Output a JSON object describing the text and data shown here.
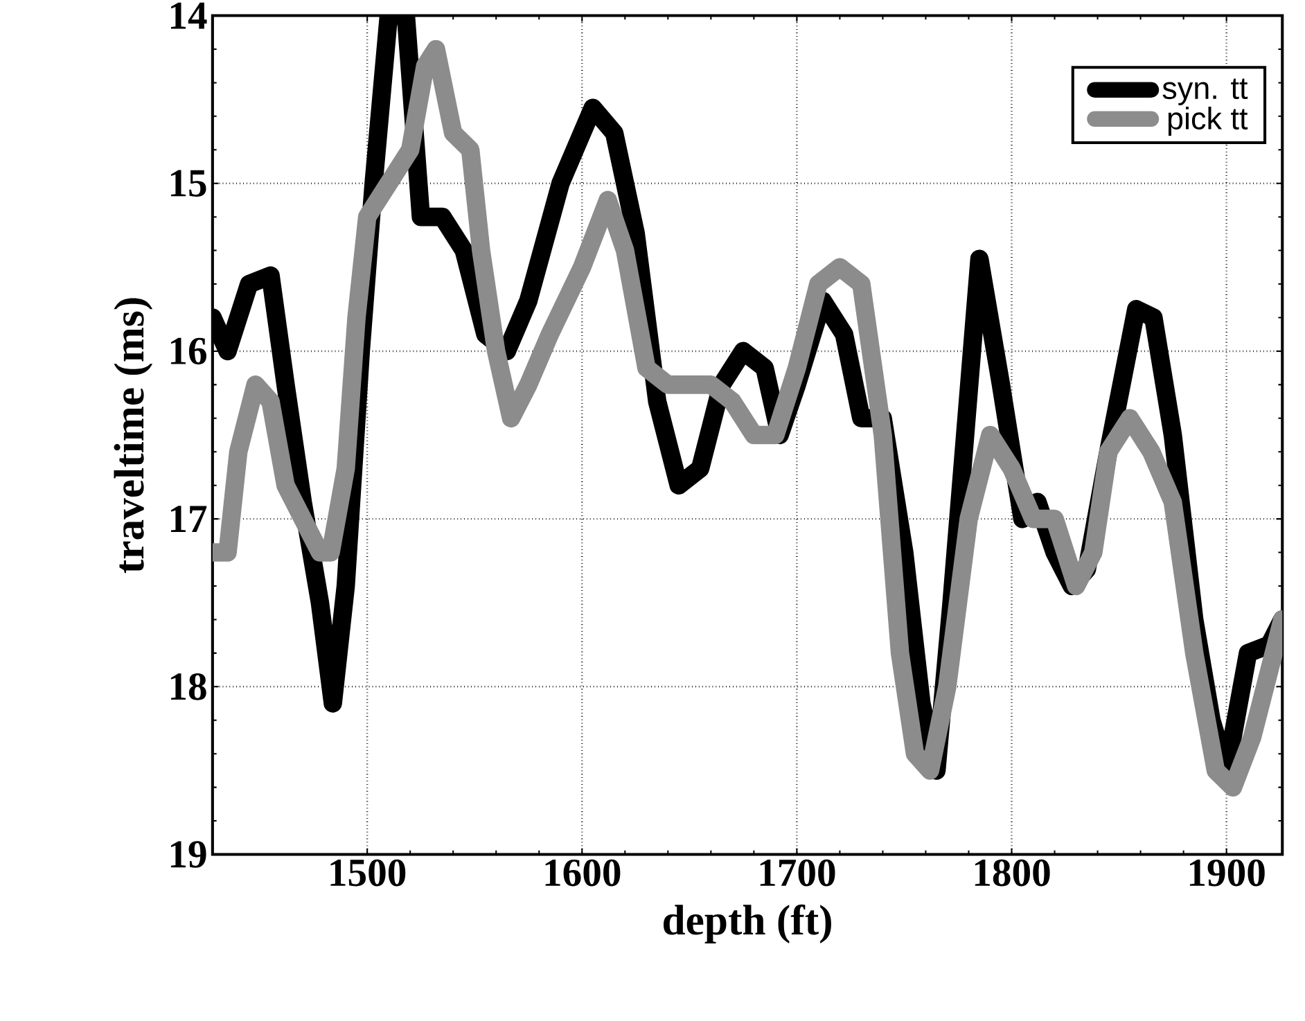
{
  "chart_data": {
    "type": "line",
    "xlabel": "depth (ft)",
    "ylabel": "traveltime (ms)",
    "xlim": [
      1428,
      1926
    ],
    "ylim": [
      19,
      14
    ],
    "xticks": [
      1500,
      1600,
      1700,
      1800,
      1900
    ],
    "yticks": [
      14,
      15,
      16,
      17,
      18,
      19
    ],
    "grid": true,
    "legend": "top right",
    "line_style": "solid",
    "marker": "none",
    "series": [
      {
        "name": "syn. tt",
        "color": "#000000",
        "x": [
          1428,
          1435,
          1445,
          1455,
          1462,
          1470,
          1478,
          1484,
          1490,
          1497,
          1503,
          1510,
          1518,
          1525,
          1535,
          1545,
          1555,
          1565,
          1575,
          1590,
          1605,
          1615,
          1625,
          1635,
          1645,
          1655,
          1665,
          1675,
          1685,
          1692,
          1700,
          1712,
          1722,
          1730,
          1740,
          1750,
          1758,
          1765,
          1772,
          1785,
          1795,
          1805,
          1812,
          1820,
          1828,
          1835,
          1845,
          1858,
          1866,
          1875,
          1885,
          1893,
          1900,
          1910,
          1920,
          1926
        ],
        "values": [
          15.8,
          16.0,
          15.6,
          15.55,
          16.2,
          16.9,
          17.5,
          18.1,
          17.4,
          16.0,
          15.0,
          14.0,
          14.0,
          15.2,
          15.2,
          15.4,
          15.9,
          16.0,
          15.7,
          15.0,
          14.55,
          14.7,
          15.3,
          16.3,
          16.8,
          16.7,
          16.2,
          16.0,
          16.1,
          16.5,
          16.2,
          15.7,
          15.9,
          16.4,
          16.4,
          17.2,
          18.1,
          18.5,
          17.5,
          15.45,
          16.2,
          17.0,
          16.9,
          17.2,
          17.4,
          17.3,
          16.6,
          15.75,
          15.8,
          16.5,
          17.6,
          18.2,
          18.5,
          17.8,
          17.75,
          17.6
        ]
      },
      {
        "name": "pick tt",
        "color": "#8c8c8c",
        "x": [
          1428,
          1435,
          1440,
          1448,
          1455,
          1462,
          1470,
          1478,
          1483,
          1490,
          1495,
          1500,
          1510,
          1520,
          1527,
          1532,
          1540,
          1548,
          1553,
          1560,
          1567,
          1575,
          1585,
          1600,
          1612,
          1620,
          1630,
          1640,
          1650,
          1660,
          1670,
          1680,
          1690,
          1700,
          1710,
          1720,
          1730,
          1740,
          1748,
          1755,
          1762,
          1770,
          1780,
          1790,
          1800,
          1810,
          1820,
          1830,
          1838,
          1845,
          1855,
          1865,
          1875,
          1885,
          1895,
          1903,
          1912,
          1920,
          1926
        ],
        "values": [
          17.2,
          17.2,
          16.6,
          16.2,
          16.3,
          16.8,
          17.0,
          17.2,
          17.2,
          16.7,
          15.8,
          15.2,
          15.0,
          14.8,
          14.3,
          14.2,
          14.7,
          14.8,
          15.4,
          16.0,
          16.4,
          16.2,
          15.9,
          15.5,
          15.1,
          15.4,
          16.1,
          16.2,
          16.2,
          16.2,
          16.3,
          16.5,
          16.5,
          16.1,
          15.6,
          15.5,
          15.6,
          16.5,
          17.8,
          18.4,
          18.5,
          18.0,
          17.0,
          16.5,
          16.7,
          17.0,
          17.0,
          17.4,
          17.2,
          16.6,
          16.4,
          16.6,
          16.9,
          17.8,
          18.5,
          18.6,
          18.3,
          17.9,
          17.6
        ]
      }
    ]
  }
}
